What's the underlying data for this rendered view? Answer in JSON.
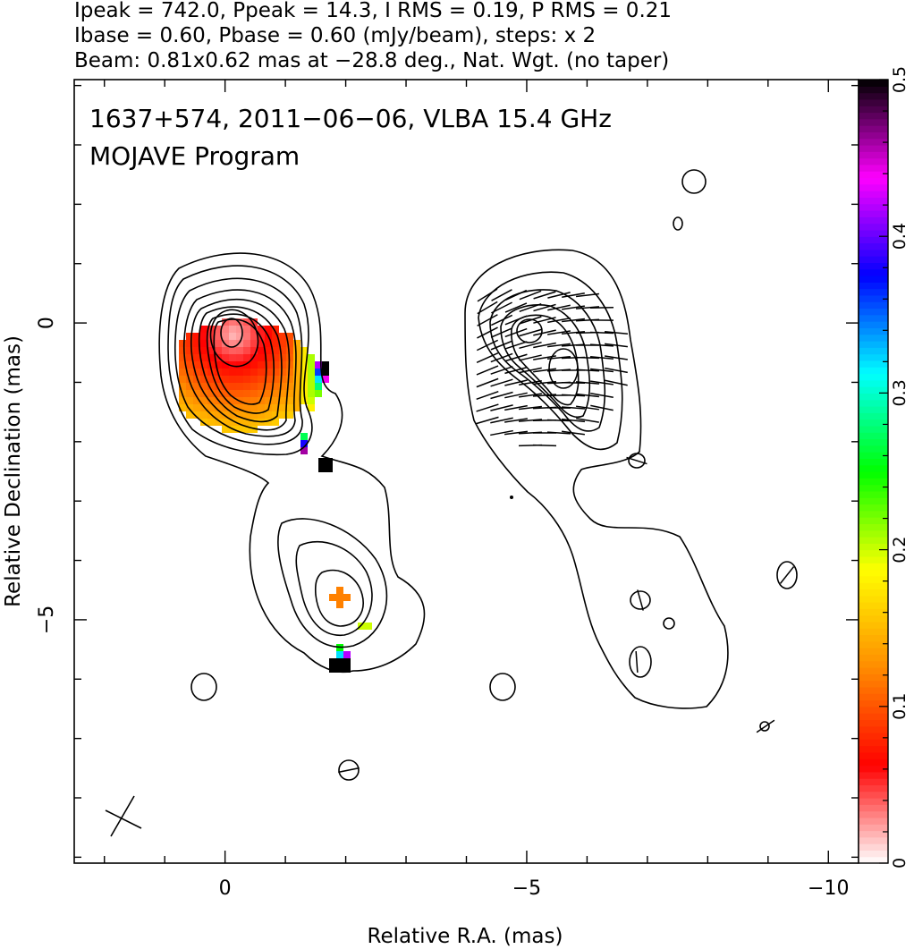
{
  "header": {
    "line1": "Ipeak = 742.0, Ppeak = 14.3, I RMS = 0.19, P RMS = 0.21",
    "line2": "Ibase = 0.60, Pbase = 0.60 (mJy/beam), steps: x 2",
    "line3": "Beam: 0.81x0.62 mas at −28.8 deg., Nat. Wgt. (no taper)"
  },
  "annotations": {
    "source": "1637+574, 2011−06−06, VLBA 15.4 GHz",
    "program": "MOJAVE Program"
  },
  "chart_data": {
    "type": "contour",
    "xlabel": "Relative R.A. (mas)",
    "ylabel": "Relative Declination (mas)",
    "xlim": [
      2.5,
      -10.5
    ],
    "ylim": [
      -9.1,
      4.1
    ],
    "x_ticks": [
      0,
      -5,
      -10
    ],
    "x_tick_labels": [
      "0",
      "−5",
      "−10"
    ],
    "y_ticks": [
      0,
      -5
    ],
    "y_tick_labels": [
      "0",
      "−5"
    ],
    "colorbar": {
      "min": 0,
      "max": 0.5,
      "ticks": [
        0,
        0.1,
        0.2,
        0.3,
        0.4,
        0.5
      ],
      "tick_labels": [
        "0",
        "0.1",
        "0.2",
        "0.3",
        "0.4",
        "0.5"
      ],
      "colors": [
        "#ffffff",
        "#ff0000",
        "#ff8c00",
        "#ffff00",
        "#00ff00",
        "#00ffff",
        "#0000ff",
        "#ff00ff",
        "#000000"
      ]
    },
    "panels": [
      {
        "name": "total intensity with fractional polarization",
        "core": [
          0,
          0
        ],
        "peak_mJy_per_beam": 742.0
      },
      {
        "name": "polarized intensity with EVPA vectors",
        "core": [
          -5,
          0
        ],
        "peak_mJy_per_beam": 14.3
      }
    ]
  }
}
